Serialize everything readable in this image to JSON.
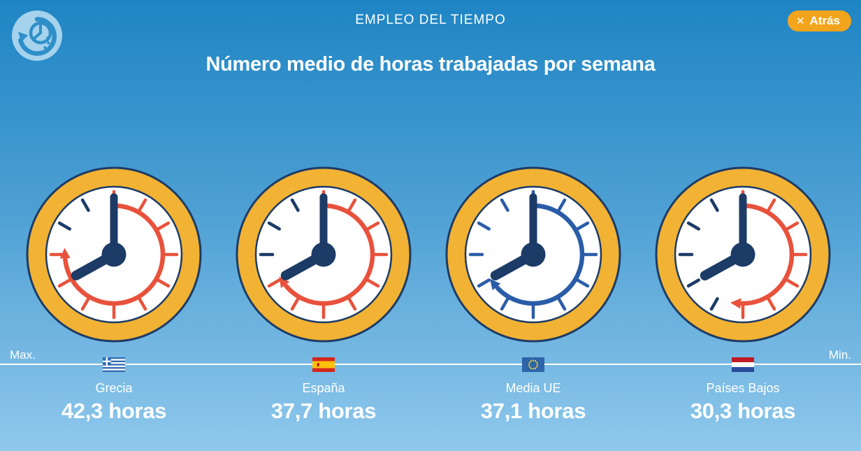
{
  "header": {
    "app_icon": "time-use-clock-icon",
    "title": "EMPLEO DEL TIEMPO",
    "back_button": {
      "icon": "✕",
      "label": "Atrás"
    }
  },
  "page_title": "Número medio de horas trabajadas por semana",
  "axis": {
    "max_label": "Max.",
    "min_label": "Min."
  },
  "colors": {
    "bg_top": "#1E85C4",
    "bg_bottom": "#8FC8EC",
    "button_orange": "#F2A51C",
    "ring_orange": "#F2B233",
    "clock_red": "#E8523C",
    "clock_navy": "#1C3B67",
    "eu_blue": "#2A5CA8",
    "face_white": "#FFFFFF",
    "icon_bg": "#A5D2EC",
    "icon_glyph": "#2E8FC9"
  },
  "chart_data": {
    "type": "clock-gauges",
    "title": "Número medio de horas trabajadas por semana",
    "subtitle": "EMPLEO DEL TIEMPO",
    "unit": "horas",
    "scale_labels": {
      "left": "Max.",
      "right": "Min."
    },
    "items": [
      {
        "country": "Grecia",
        "hours": 42.3,
        "value_label": "42,3 horas",
        "flag": "greece",
        "arc_color": "#E8523C",
        "arc_degrees": 268,
        "all_ticks_arc_color": false,
        "tag": "Max."
      },
      {
        "country": "España",
        "hours": 37.7,
        "value_label": "37,7 horas",
        "flag": "spain",
        "arc_color": "#E8523C",
        "arc_degrees": 234,
        "all_ticks_arc_color": false,
        "tag": ""
      },
      {
        "country": "Media UE",
        "hours": 37.1,
        "value_label": "37,1 horas",
        "flag": "eu",
        "arc_color": "#2A5CA8",
        "arc_degrees": 231,
        "all_ticks_arc_color": true,
        "tag": ""
      },
      {
        "country": "Países Bajos",
        "hours": 30.3,
        "value_label": "30,3 horas",
        "flag": "netherlands",
        "arc_color": "#E8523C",
        "arc_degrees": 185,
        "all_ticks_arc_color": false,
        "tag": "Min."
      }
    ]
  }
}
